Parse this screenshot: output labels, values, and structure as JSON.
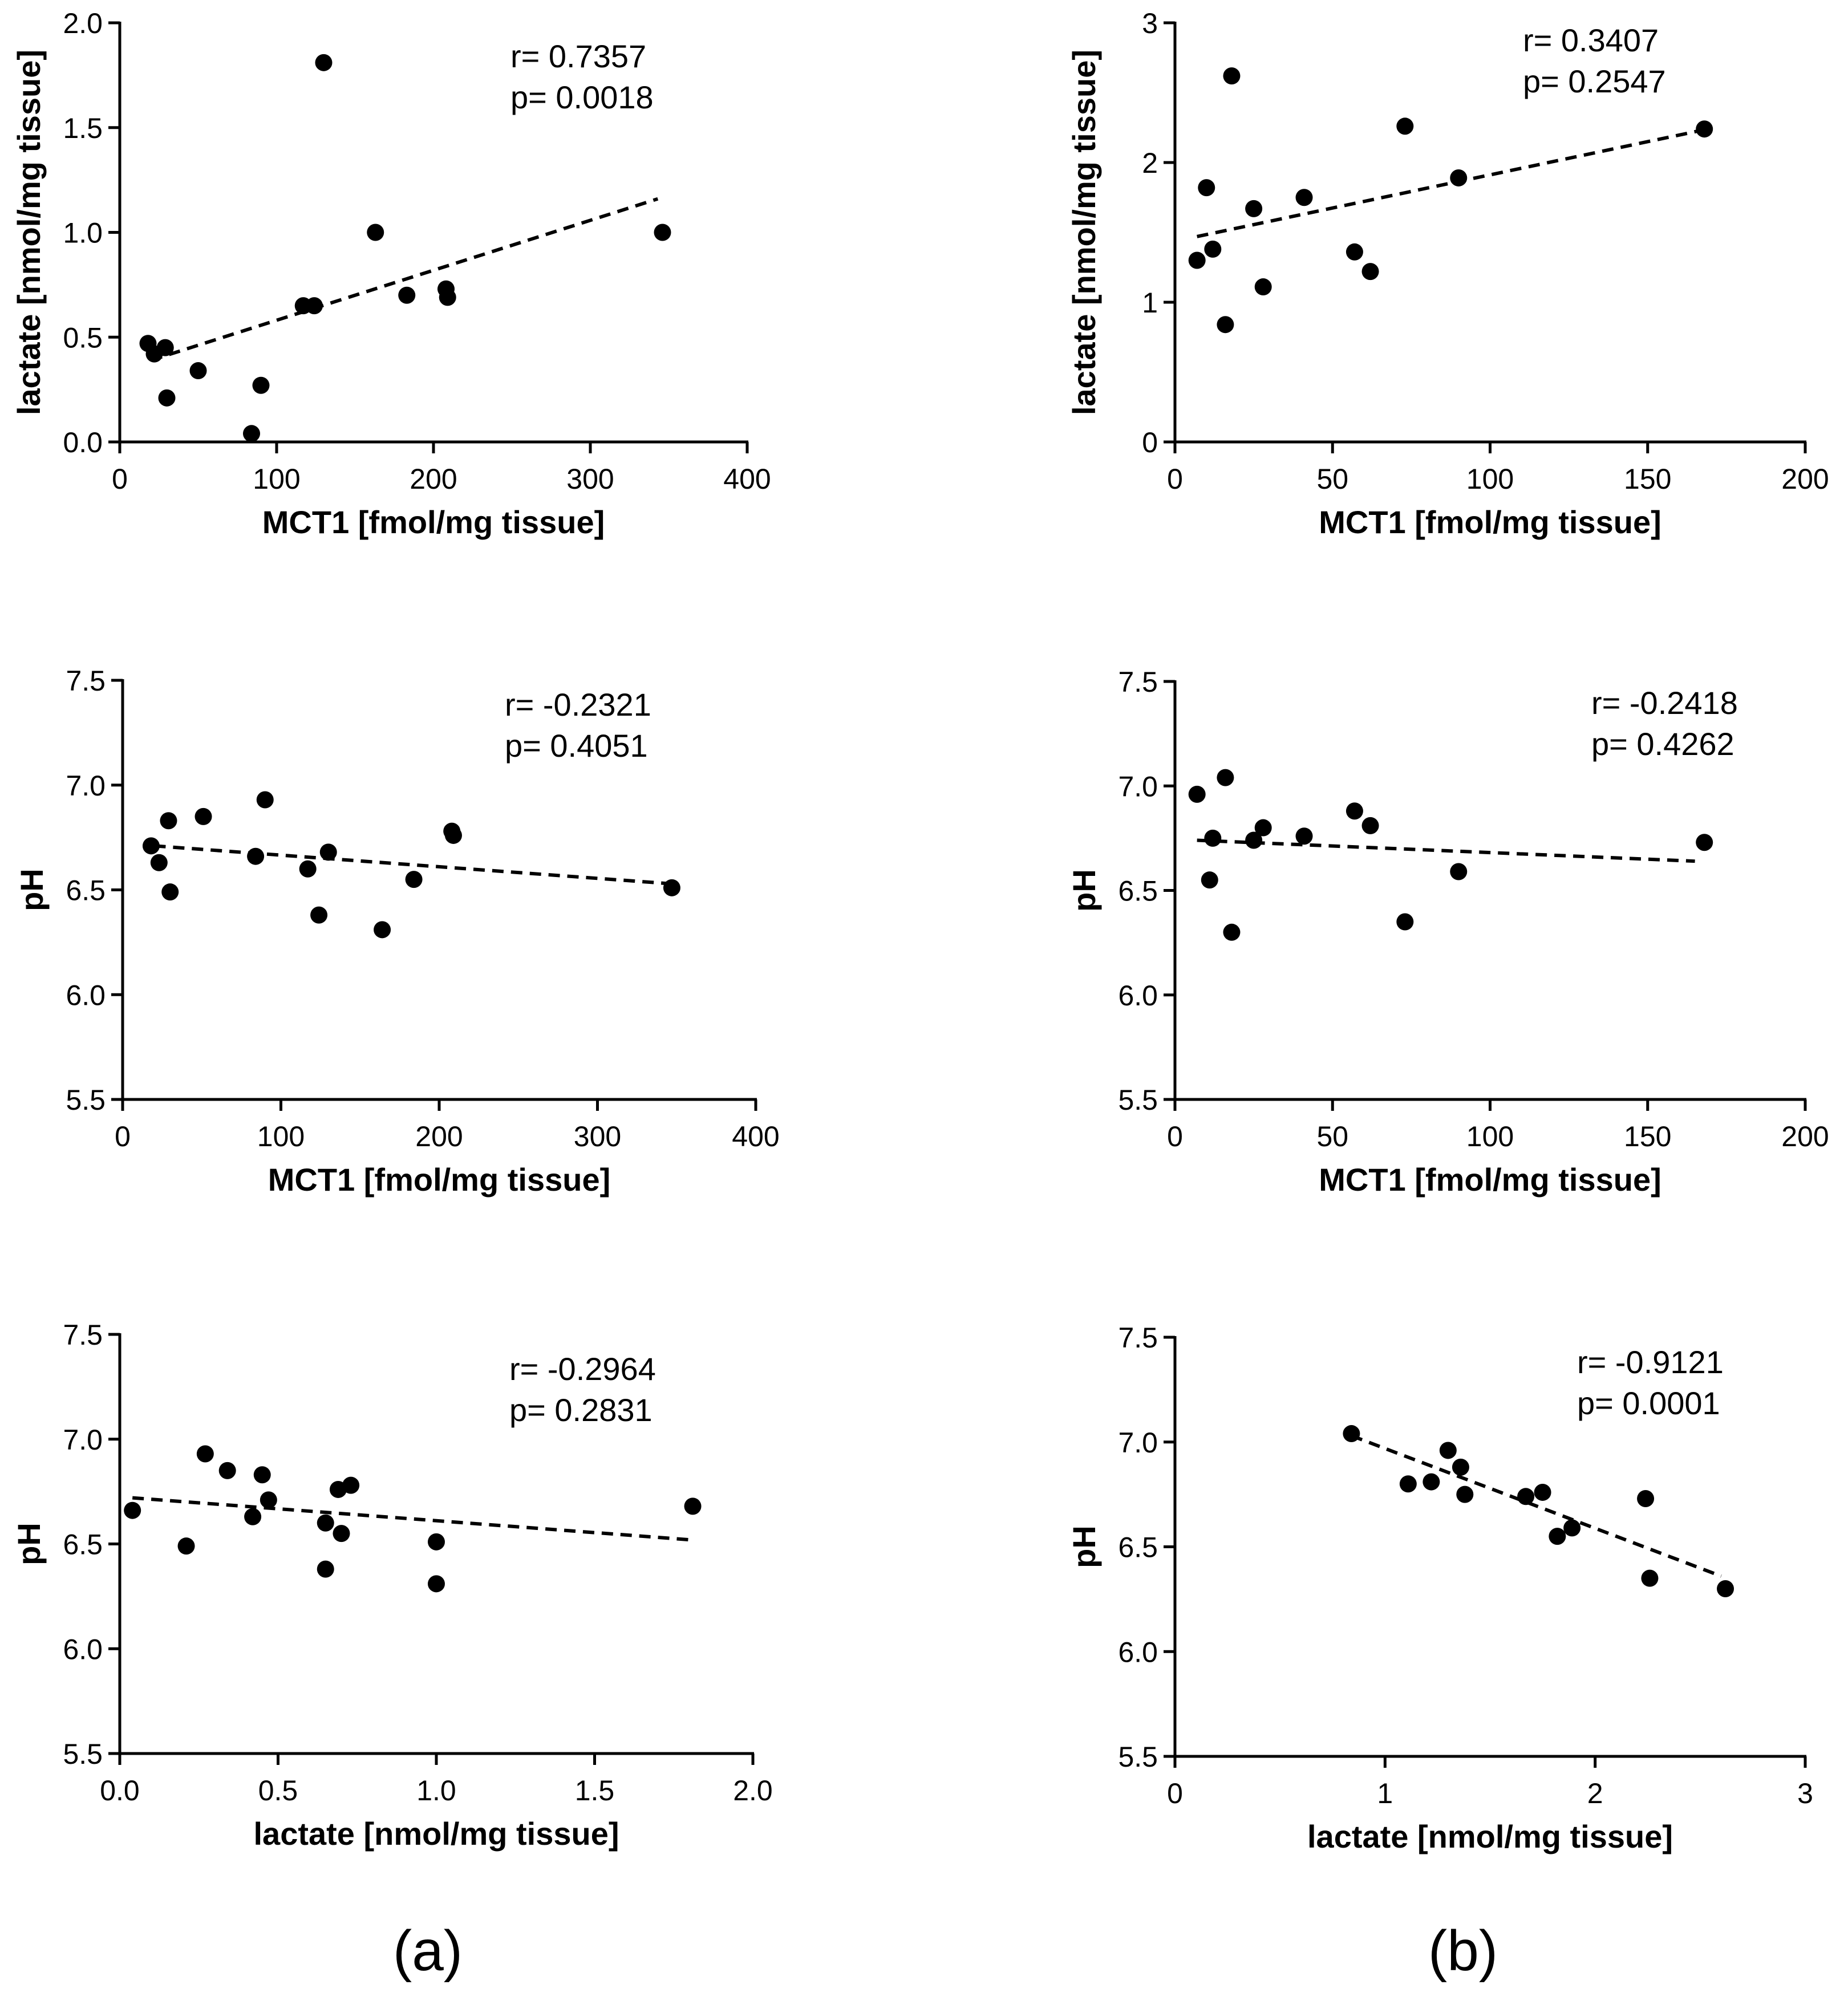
{
  "panel_labels": [
    "(a)",
    "(b)"
  ],
  "chart_data": [
    {
      "id": "a1",
      "type": "scatter",
      "xlabel": "MCT1 [fmol/mg tissue]",
      "ylabel": "lactate [nmol/mg tissue]",
      "xlim": [
        0,
        400
      ],
      "ylim": [
        0,
        2
      ],
      "xticks": [
        0,
        100,
        200,
        300,
        400
      ],
      "xtick_labels": [
        "0",
        "100",
        "200",
        "300",
        "400"
      ],
      "yticks": [
        0,
        0.5,
        1,
        1.5,
        2
      ],
      "ytick_labels": [
        "0.0",
        "0.5",
        "1.0",
        "1.5",
        "2.0"
      ],
      "stats": {
        "r": "r= 0.7357",
        "p": "p= 0.0018"
      },
      "x": [
        18,
        22,
        29,
        30,
        50,
        84,
        90,
        117,
        124,
        130,
        163,
        183,
        208,
        209,
        346
      ],
      "y": [
        0.47,
        0.42,
        0.45,
        0.21,
        0.34,
        0.04,
        0.27,
        0.65,
        0.65,
        1.81,
        1.0,
        0.7,
        0.73,
        0.69,
        1.0
      ],
      "fit": {
        "x": [
          20,
          343
        ],
        "y": [
          0.39,
          1.16
        ]
      }
    },
    {
      "id": "b1",
      "type": "scatter",
      "xlabel": "MCT1 [fmol/mg tissue]",
      "ylabel": "lactate [nmol/mg tissue]",
      "xlim": [
        0,
        200
      ],
      "ylim": [
        0,
        3
      ],
      "xticks": [
        0,
        50,
        100,
        150,
        200
      ],
      "xtick_labels": [
        "0",
        "50",
        "100",
        "150",
        "200"
      ],
      "yticks": [
        0,
        1,
        2,
        3
      ],
      "ytick_labels": [
        "0",
        "1",
        "2",
        "3"
      ],
      "stats": {
        "r": "r= 0.3407",
        "p": "p= 0.2547"
      },
      "x": [
        7,
        10,
        12,
        16,
        18,
        25,
        28,
        41,
        57,
        62,
        73,
        90,
        168
      ],
      "y": [
        1.3,
        1.82,
        1.38,
        0.84,
        2.62,
        1.67,
        1.11,
        1.75,
        1.36,
        1.22,
        2.26,
        1.89,
        2.24
      ],
      "fit": {
        "x": [
          7,
          167
        ],
        "y": [
          1.47,
          2.23
        ]
      }
    },
    {
      "id": "a2",
      "type": "scatter",
      "xlabel": "MCT1 [fmol/mg tissue]",
      "ylabel": "pH",
      "xlim": [
        0,
        400
      ],
      "ylim": [
        5.5,
        7.5
      ],
      "xticks": [
        0,
        100,
        200,
        300,
        400
      ],
      "xtick_labels": [
        "0",
        "100",
        "200",
        "300",
        "400"
      ],
      "yticks": [
        5.5,
        6,
        6.5,
        7,
        7.5
      ],
      "ytick_labels": [
        "5.5",
        "6.0",
        "6.5",
        "7.0",
        "7.5"
      ],
      "stats": {
        "r": "r= -0.2321",
        "p": "p= 0.4051"
      },
      "x": [
        18,
        23,
        29,
        30,
        51,
        84,
        90,
        117,
        124,
        130,
        164,
        184,
        208,
        209,
        347
      ],
      "y": [
        6.71,
        6.63,
        6.83,
        6.49,
        6.85,
        6.66,
        6.93,
        6.6,
        6.38,
        6.68,
        6.31,
        6.55,
        6.78,
        6.76,
        6.51
      ],
      "fit": {
        "x": [
          20,
          345
        ],
        "y": [
          6.71,
          6.53
        ]
      }
    },
    {
      "id": "b2",
      "type": "scatter",
      "xlabel": "MCT1 [fmol/mg tissue]",
      "ylabel": "pH",
      "xlim": [
        0,
        200
      ],
      "ylim": [
        5.5,
        7.5
      ],
      "xticks": [
        0,
        50,
        100,
        150,
        200
      ],
      "xtick_labels": [
        "0",
        "50",
        "100",
        "150",
        "200"
      ],
      "yticks": [
        5.5,
        6,
        6.5,
        7,
        7.5
      ],
      "ytick_labels": [
        "5.5",
        "6.0",
        "6.5",
        "7.0",
        "7.5"
      ],
      "stats": {
        "r": "r= -0.2418",
        "p": "p= 0.4262"
      },
      "x": [
        7,
        11,
        12,
        16,
        18,
        25,
        28,
        41,
        57,
        62,
        73,
        90,
        168
      ],
      "y": [
        6.96,
        6.55,
        6.75,
        7.04,
        6.3,
        6.74,
        6.8,
        6.76,
        6.88,
        6.81,
        6.35,
        6.59,
        6.73
      ],
      "fit": {
        "x": [
          7,
          165
        ],
        "y": [
          6.74,
          6.64
        ]
      }
    },
    {
      "id": "a3",
      "type": "scatter",
      "xlabel": "lactate [nmol/mg tissue]",
      "ylabel": "pH",
      "xlim": [
        0,
        2
      ],
      "ylim": [
        5.5,
        7.5
      ],
      "xticks": [
        0,
        0.5,
        1,
        1.5,
        2
      ],
      "xtick_labels": [
        "0.0",
        "0.5",
        "1.0",
        "1.5",
        "2.0"
      ],
      "yticks": [
        5.5,
        6,
        6.5,
        7,
        7.5
      ],
      "ytick_labels": [
        "5.5",
        "6.0",
        "6.5",
        "7.0",
        "7.5"
      ],
      "stats": {
        "r": "r= -0.2964",
        "p": "p= 0.2831"
      },
      "x": [
        0.04,
        0.21,
        0.27,
        0.34,
        0.42,
        0.45,
        0.47,
        0.65,
        0.65,
        0.69,
        0.7,
        0.73,
        1.0,
        1.0,
        1.81
      ],
      "y": [
        6.66,
        6.49,
        6.93,
        6.85,
        6.63,
        6.83,
        6.71,
        6.6,
        6.38,
        6.76,
        6.55,
        6.78,
        6.31,
        6.51,
        6.68
      ],
      "fit": {
        "x": [
          0.04,
          1.8
        ],
        "y": [
          6.72,
          6.52
        ]
      }
    },
    {
      "id": "b3",
      "type": "scatter",
      "xlabel": "lactate [nmol/mg tissue]",
      "ylabel": "pH",
      "xlim": [
        0,
        3
      ],
      "ylim": [
        5.5,
        7.5
      ],
      "xticks": [
        0,
        1,
        2,
        3
      ],
      "xtick_labels": [
        "0",
        "1",
        "2",
        "3"
      ],
      "yticks": [
        5.5,
        6,
        6.5,
        7,
        7.5
      ],
      "ytick_labels": [
        "5.5",
        "6.0",
        "6.5",
        "7.0",
        "7.5"
      ],
      "stats": {
        "r": "r= -0.9121",
        "p": "p= 0.0001"
      },
      "x": [
        0.84,
        1.11,
        1.22,
        1.3,
        1.36,
        1.38,
        1.67,
        1.75,
        1.82,
        1.89,
        2.24,
        2.26,
        2.62
      ],
      "y": [
        7.04,
        6.8,
        6.81,
        6.96,
        6.88,
        6.75,
        6.74,
        6.76,
        6.55,
        6.59,
        6.73,
        6.35,
        6.3
      ],
      "fit": {
        "x": [
          0.84,
          2.6
        ],
        "y": [
          7.03,
          6.36
        ]
      }
    }
  ]
}
